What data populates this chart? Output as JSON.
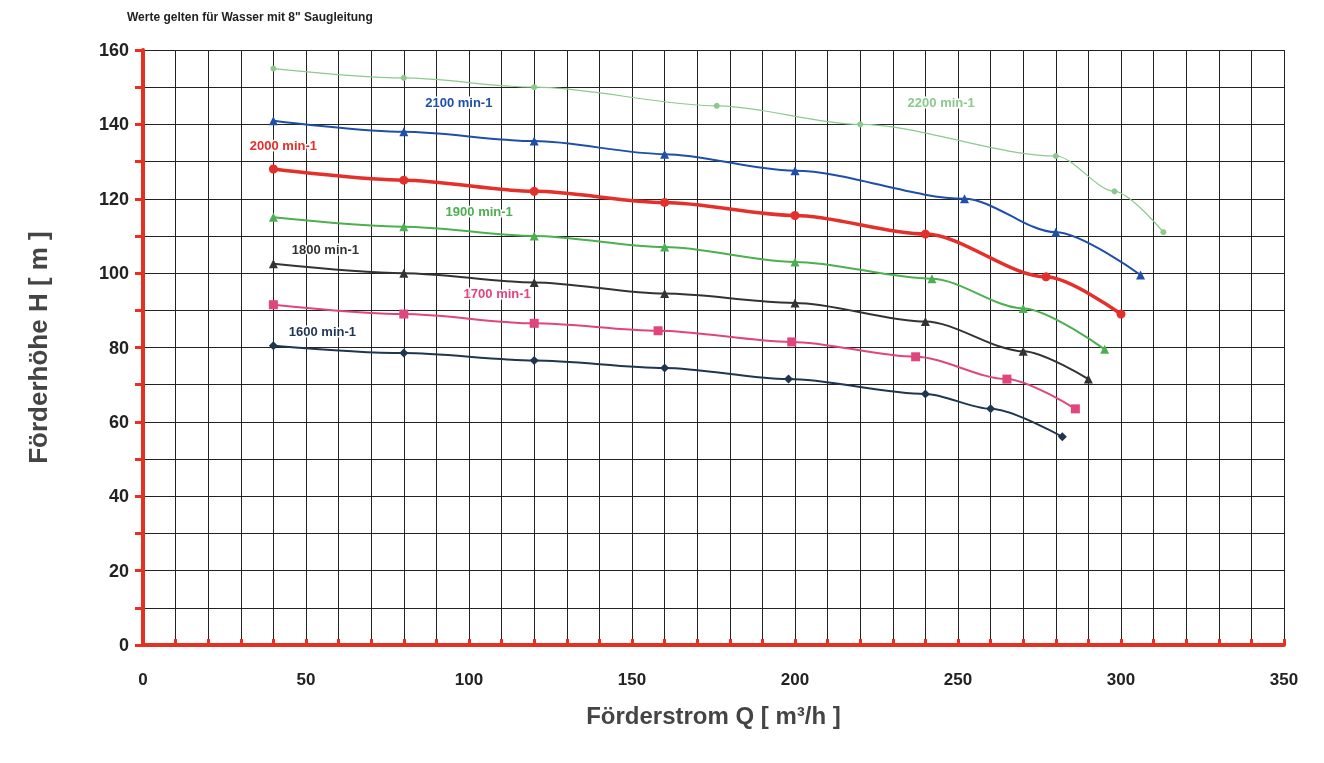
{
  "chart_data": {
    "type": "line",
    "title": "Werte gelten für Wasser mit 8\" Saugleitung",
    "xlabel": "Förderstrom Q [ m³/h ]",
    "ylabel": "Förderhöhe H [ m ]",
    "xlim": [
      0,
      350
    ],
    "ylim": [
      0,
      160
    ],
    "xticks": [
      0,
      {
        "value": 10,
        "label": null
      },
      {
        "value": 20,
        "label": null
      },
      {
        "value": 30,
        "label": null
      },
      {
        "value": 40,
        "label": null
      },
      50,
      {
        "value": 60,
        "label": null
      },
      {
        "value": 70,
        "label": null
      },
      {
        "value": 80,
        "label": null
      },
      {
        "value": 90,
        "label": null
      },
      100,
      {
        "value": 110,
        "label": null
      },
      {
        "value": 120,
        "label": null
      },
      {
        "value": 130,
        "label": null
      },
      {
        "value": 140,
        "label": null
      },
      150,
      {
        "value": 160,
        "label": null
      },
      {
        "value": 170,
        "label": null
      },
      {
        "value": 180,
        "label": null
      },
      {
        "value": 190,
        "label": null
      },
      200,
      {
        "value": 210,
        "label": null
      },
      {
        "value": 220,
        "label": null
      },
      {
        "value": 230,
        "label": null
      },
      {
        "value": 240,
        "label": null
      },
      250,
      {
        "value": 260,
        "label": null
      },
      {
        "value": 270,
        "label": null
      },
      {
        "value": 280,
        "label": null
      },
      {
        "value": 290,
        "label": null
      },
      300,
      {
        "value": 310,
        "label": null
      },
      {
        "value": 320,
        "label": null
      },
      {
        "value": 330,
        "label": null
      },
      {
        "value": 340,
        "label": null
      },
      350
    ],
    "yticks": [
      0,
      {
        "value": 10,
        "label": null
      },
      20,
      {
        "value": 30,
        "label": null
      },
      40,
      {
        "value": 50,
        "label": null
      },
      60,
      {
        "value": 70,
        "label": null
      },
      80,
      {
        "value": 90,
        "label": null
      },
      100,
      {
        "value": 110,
        "label": null
      },
      120,
      {
        "value": 130,
        "label": null
      },
      140,
      {
        "value": 150,
        "label": null
      },
      160
    ],
    "grid": true,
    "legend": false,
    "line_style": "solid",
    "series": [
      {
        "name": "2200 min-1",
        "color": "#8cc98c",
        "marker": "circle",
        "x": [
          40,
          80,
          120,
          176,
          220,
          280,
          298,
          313
        ],
        "values": [
          155,
          152.5,
          150,
          145,
          140,
          131.5,
          122,
          111
        ]
      },
      {
        "name": "2100 min-1",
        "color": "#1f4fa8",
        "marker": "triangle",
        "x": [
          40,
          80,
          120,
          160,
          200,
          252,
          280,
          306
        ],
        "values": [
          141,
          138,
          135.5,
          132,
          127.5,
          120,
          111,
          99.5
        ]
      },
      {
        "name": "2000 min-1",
        "color": "#e3302a",
        "marker": "circle",
        "x": [
          40,
          80,
          120,
          160,
          200,
          240,
          277,
          300
        ],
        "values": [
          128,
          125,
          122,
          119,
          115.5,
          110.5,
          99,
          89
        ]
      },
      {
        "name": "1900 min-1",
        "color": "#4caf50",
        "marker": "triangle",
        "x": [
          40,
          80,
          120,
          160,
          200,
          242,
          270,
          295
        ],
        "values": [
          115,
          112.5,
          110,
          107,
          103,
          98.5,
          90.5,
          79.5
        ]
      },
      {
        "name": "1800 min-1",
        "color": "#333333",
        "marker": "triangle",
        "x": [
          40,
          80,
          120,
          160,
          200,
          240,
          270,
          290
        ],
        "values": [
          102.5,
          100,
          97.5,
          94.5,
          92,
          87,
          79,
          71.5
        ]
      },
      {
        "name": "1700 min-1",
        "color": "#e0457d",
        "marker": "square",
        "x": [
          40,
          80,
          120,
          158,
          199,
          237,
          265,
          286
        ],
        "values": [
          91.5,
          89,
          86.5,
          84.5,
          81.5,
          77.5,
          71.5,
          63.5
        ]
      },
      {
        "name": "1600 min-1",
        "color": "#1f3550",
        "marker": "diamond",
        "x": [
          40,
          80,
          120,
          160,
          198,
          240,
          260,
          282
        ],
        "values": [
          80.5,
          78.5,
          76.5,
          74.5,
          71.5,
          67.5,
          63.5,
          56
        ]
      }
    ]
  }
}
